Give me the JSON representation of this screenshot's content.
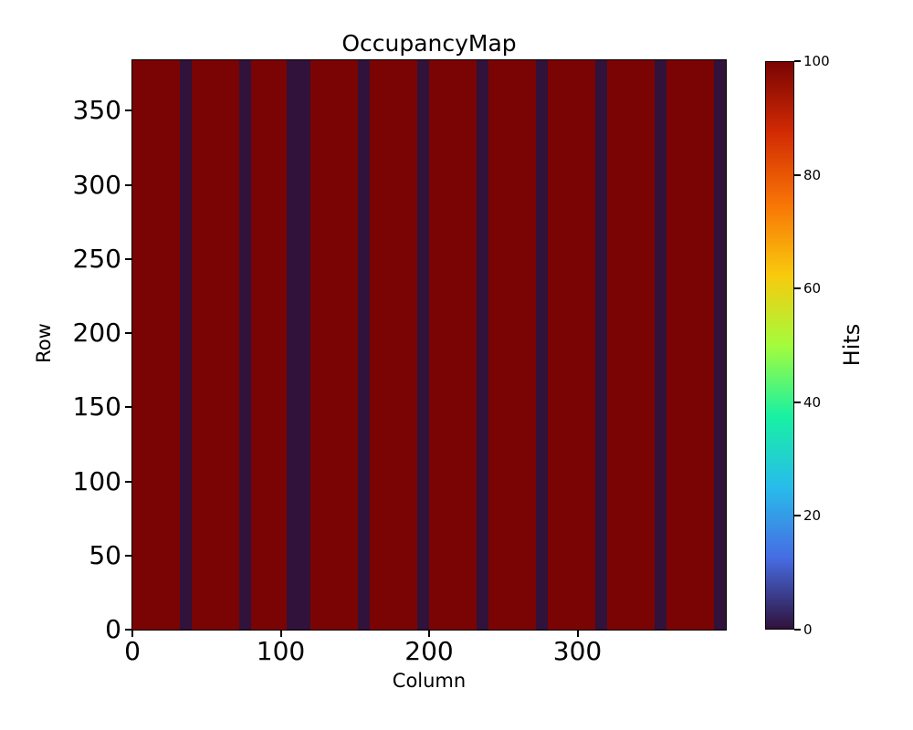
{
  "chart_data": {
    "type": "heatmap",
    "title": "OccupancyMap",
    "xlabel": "Column",
    "ylabel": "Row",
    "colorbar_label": "Hits",
    "xlim": [
      0,
      400
    ],
    "ylim": [
      0,
      384
    ],
    "clim": [
      0,
      100
    ],
    "xticks": [
      0,
      100,
      200,
      300
    ],
    "yticks": [
      0,
      50,
      100,
      150,
      200,
      250,
      300,
      350
    ],
    "colorbar_ticks": [
      0,
      20,
      40,
      60,
      80,
      100
    ],
    "grid": false,
    "colormap": "turbo",
    "colormap_stops": [
      {
        "t": 0.0,
        "color": "#30123b"
      },
      {
        "t": 0.125,
        "color": "#466ce3"
      },
      {
        "t": 0.25,
        "color": "#28bceb"
      },
      {
        "t": 0.375,
        "color": "#18f1a3"
      },
      {
        "t": 0.5,
        "color": "#a4fc3c"
      },
      {
        "t": 0.625,
        "color": "#f9c90d"
      },
      {
        "t": 0.75,
        "color": "#f87406"
      },
      {
        "t": 0.875,
        "color": "#d22b03"
      },
      {
        "t": 1.0,
        "color": "#7a0403"
      }
    ],
    "base_value": 100,
    "base_color": "#7a0403",
    "dead_value": 0,
    "dead_color": "#30123b",
    "dead_column_ranges": [
      [
        32,
        40
      ],
      [
        72,
        80
      ],
      [
        104,
        120
      ],
      [
        152,
        160
      ],
      [
        192,
        200
      ],
      [
        232,
        240
      ],
      [
        272,
        280
      ],
      [
        312,
        320
      ],
      [
        352,
        360
      ],
      [
        392,
        400
      ]
    ]
  }
}
